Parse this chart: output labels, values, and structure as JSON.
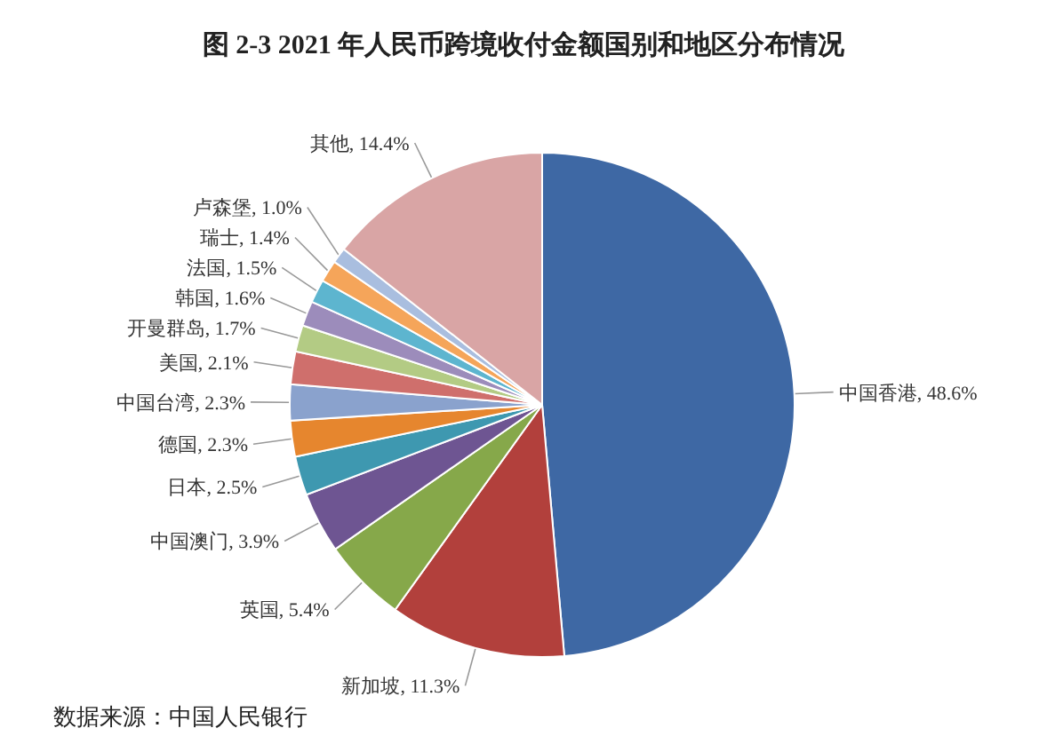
{
  "chart_data": {
    "type": "pie",
    "title": "图 2-3 2021 年人民币跨境收付金额国别和地区分布情况",
    "categories": [
      "中国香港",
      "新加坡",
      "英国",
      "中国澳门",
      "日本",
      "德国",
      "中国台湾",
      "美国",
      "开曼群岛",
      "韩国",
      "法国",
      "瑞士",
      "卢森堡",
      "其他"
    ],
    "values": [
      48.6,
      11.3,
      5.4,
      3.9,
      2.5,
      2.3,
      2.3,
      2.1,
      1.7,
      1.6,
      1.5,
      1.4,
      1.0,
      14.4
    ],
    "value_labels": [
      "48.6%",
      "11.3%",
      "5.4%",
      "3.9%",
      "2.5%",
      "2.3%",
      "2.3%",
      "2.1%",
      "1.7%",
      "1.6%",
      "1.5%",
      "1.4%",
      "1.0%",
      "14.4%"
    ],
    "colors": [
      "#3e68a4",
      "#b2403c",
      "#86a84a",
      "#6e5592",
      "#3e98b0",
      "#e6862e",
      "#8aa2cd",
      "#cf6f6c",
      "#b3cb84",
      "#9c8cbb",
      "#5db5cf",
      "#f5a55a",
      "#a9bedf",
      "#d9a5a5"
    ],
    "annotations": [
      "数据来源：中国人民银行"
    ]
  }
}
